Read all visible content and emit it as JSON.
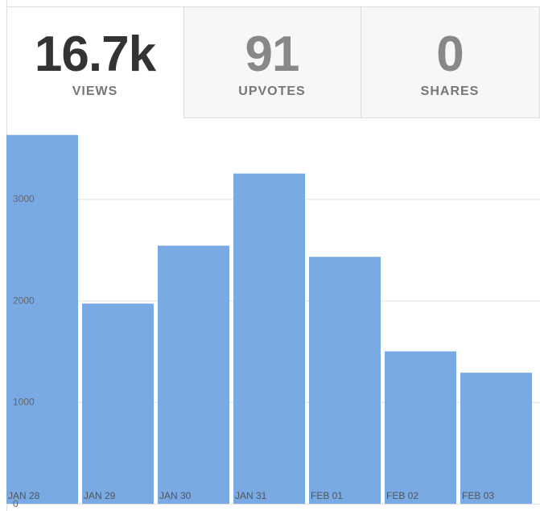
{
  "stats": [
    {
      "value": "16.7k",
      "label": "VIEWS"
    },
    {
      "value": 91,
      "label": "UPVOTES"
    },
    {
      "value": 0,
      "label": "SHARES"
    }
  ],
  "chart_data": {
    "type": "bar",
    "categories": [
      "JAN 28",
      "JAN 29",
      "JAN 30",
      "JAN 31",
      "FEB 01",
      "FEB 02",
      "FEB 03"
    ],
    "values": [
      3630,
      1970,
      2540,
      3250,
      2430,
      1500,
      1290
    ],
    "color": "#7aaae4",
    "ylim": [
      0,
      3770
    ],
    "yticks": [
      0,
      1000,
      2000,
      3000
    ],
    "grid": true
  }
}
